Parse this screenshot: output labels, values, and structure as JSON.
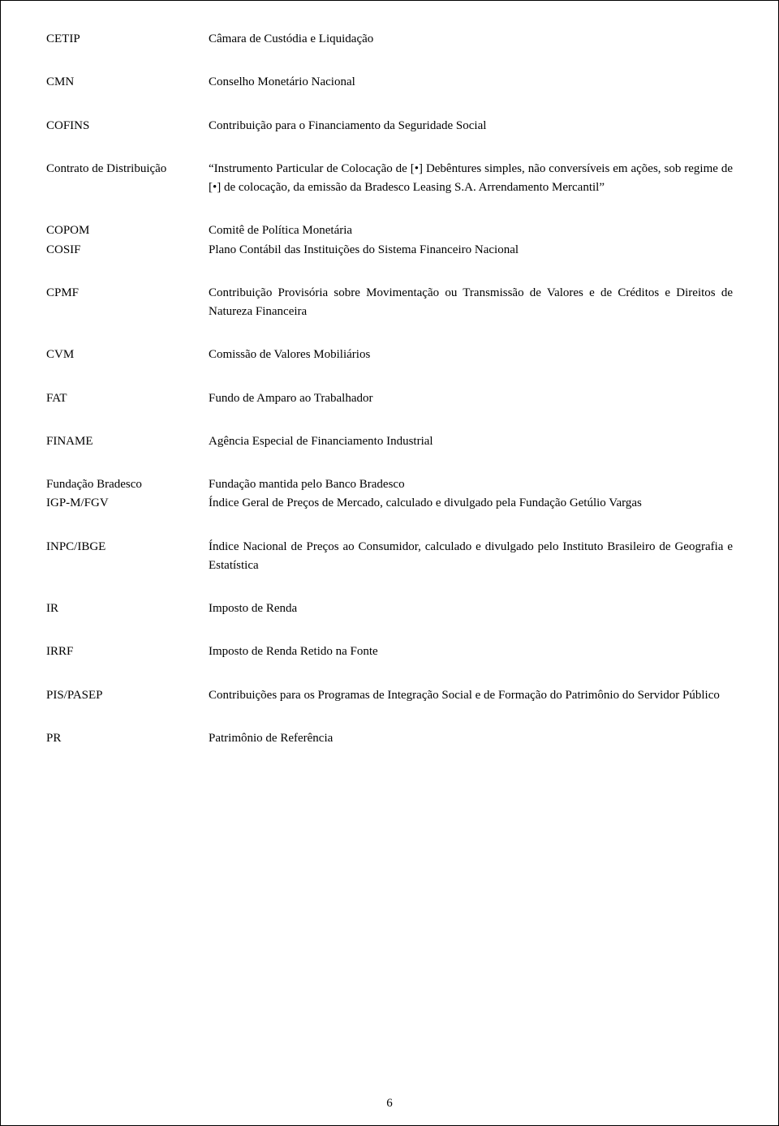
{
  "pageNumber": "6",
  "entries": [
    {
      "term": "CETIP",
      "def": "Câmara de Custódia e Liquidação"
    },
    {
      "term": "CMN",
      "def": "Conselho Monetário Nacional"
    },
    {
      "term": "COFINS",
      "def": "Contribuição para o Financiamento da Seguridade Social"
    },
    {
      "term": "Contrato de Distribuição",
      "def": "“Instrumento Particular de Colocação de [•] Debêntures simples, não conversíveis em ações, sob regime de [•] de colocação, da emissão da Bradesco Leasing S.A. Arrendamento Mercantil”"
    },
    {
      "term": "COPOM",
      "def": "Comitê de Política Monetária"
    },
    {
      "term": "COSIF",
      "def": "Plano Contábil das Instituições do Sistema Financeiro Nacional"
    },
    {
      "term": "CPMF",
      "def": "Contribuição Provisória sobre Movimentação ou Transmissão de Valores e de Créditos e Direitos de Natureza Financeira"
    },
    {
      "term": "CVM",
      "def": "Comissão de Valores Mobiliários"
    },
    {
      "term": "FAT",
      "def": "Fundo de Amparo ao Trabalhador"
    },
    {
      "term": "FINAME",
      "def": "Agência Especial de Financiamento Industrial"
    },
    {
      "term": "Fundação Bradesco",
      "def": "Fundação mantida pelo Banco Bradesco"
    },
    {
      "term": "IGP-M/FGV",
      "def": "Índice Geral de Preços de Mercado, calculado e divulgado pela Fundação Getúlio Vargas"
    },
    {
      "term": "INPC/IBGE",
      "def": "Índice Nacional de Preços ao Consumidor, calculado e divulgado pelo Instituto Brasileiro de Geografia e Estatística"
    },
    {
      "term": "IR",
      "def": "Imposto de Renda"
    },
    {
      "term": "IRRF",
      "def": "Imposto de Renda Retido na Fonte"
    },
    {
      "term": "PIS/PASEP",
      "def": "Contribuições para os Programas de Integração Social e de Formação do Patrimônio do Servidor Público"
    },
    {
      "term": "PR",
      "def": "Patrimônio de Referência"
    }
  ]
}
